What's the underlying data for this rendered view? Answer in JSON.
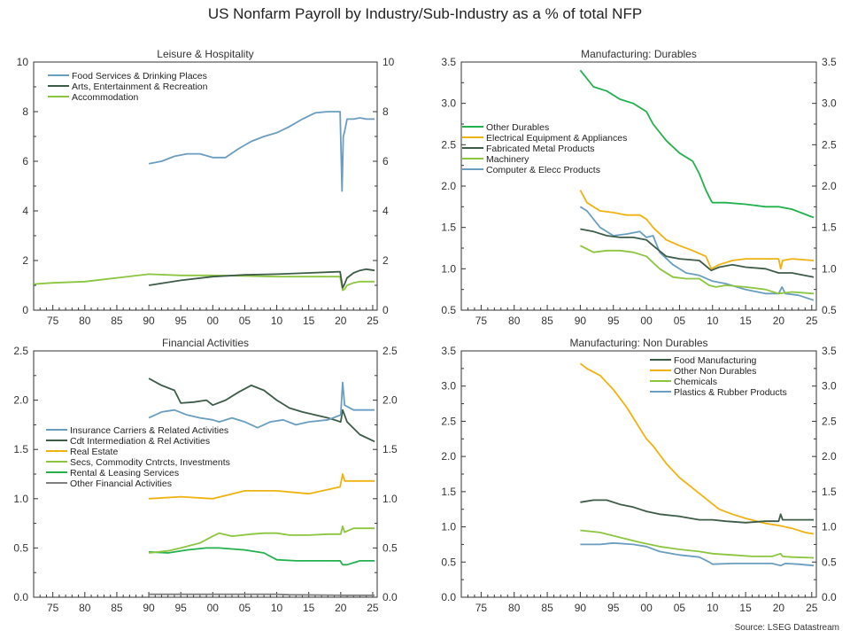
{
  "title": "US Nonfarm Payroll by Industry/Sub-Industry as a % of total NFP",
  "source": "Source: LSEG Datastream",
  "colors": {
    "steel_blue": "#6a9ec0",
    "dark_green": "#3c5c48",
    "light_green": "#8cc63f",
    "bright_green": "#22b14c",
    "gold": "#f0b20f",
    "gray": "#7f7f7f"
  },
  "chart_data": [
    {
      "type": "line",
      "title": "Leisure & Hospitality",
      "x_ticks": [
        "75",
        "80",
        "85",
        "90",
        "95",
        "00",
        "05",
        "10",
        "15",
        "20",
        "25"
      ],
      "ylim": [
        0,
        10
      ],
      "y_ticks": [
        "0",
        "2",
        "4",
        "6",
        "8",
        "10"
      ],
      "legend_position": "top-left",
      "series": [
        {
          "name": "Food Services & Drinking Places",
          "color": "#6a9ec0",
          "x": [
            1990,
            1992,
            1994,
            1996,
            1998,
            2000,
            2002,
            2004,
            2006,
            2008,
            2010,
            2012,
            2014,
            2016,
            2018,
            2019.9,
            2020.2,
            2020.4,
            2020.6,
            2021,
            2022,
            2023,
            2024,
            2025.3
          ],
          "y": [
            5.9,
            6.0,
            6.2,
            6.3,
            6.3,
            6.15,
            6.15,
            6.5,
            6.8,
            7.0,
            7.15,
            7.4,
            7.7,
            7.95,
            8.0,
            8.0,
            4.8,
            7.0,
            7.2,
            7.7,
            7.7,
            7.75,
            7.7,
            7.7
          ]
        },
        {
          "name": "Arts, Entertainment & Recreation",
          "color": "#3c5c48",
          "x": [
            1990,
            1995,
            2000,
            2005,
            2010,
            2015,
            2019.9,
            2020.3,
            2020.6,
            2021,
            2022,
            2023,
            2024,
            2025.3
          ],
          "y": [
            1.0,
            1.2,
            1.35,
            1.42,
            1.45,
            1.5,
            1.55,
            0.9,
            1.05,
            1.3,
            1.5,
            1.6,
            1.65,
            1.6
          ]
        },
        {
          "name": "Accommodation",
          "color": "#8cc63f",
          "x": [
            1972,
            1975,
            1980,
            1985,
            1990,
            1995,
            2000,
            2005,
            2010,
            2015,
            2019.9,
            2020.3,
            2020.6,
            2021,
            2022,
            2023,
            2025.3
          ],
          "y": [
            1.05,
            1.1,
            1.15,
            1.3,
            1.45,
            1.4,
            1.4,
            1.38,
            1.35,
            1.35,
            1.35,
            0.8,
            0.85,
            1.0,
            1.1,
            1.15,
            1.15
          ]
        }
      ]
    },
    {
      "type": "line",
      "title": "Manufacturing: Durables",
      "x_ticks": [
        "75",
        "80",
        "85",
        "90",
        "95",
        "00",
        "05",
        "10",
        "15",
        "20",
        "25"
      ],
      "ylim": [
        0.5,
        3.5
      ],
      "y_ticks": [
        "0.5",
        "1.0",
        "1.5",
        "2.0",
        "2.5",
        "3.0",
        "3.5"
      ],
      "legend_position": "left",
      "series": [
        {
          "name": "Other Durables",
          "color": "#22b14c",
          "x": [
            1990,
            1992,
            1994,
            1996,
            1998,
            2000,
            2001,
            2003,
            2005,
            2007,
            2008,
            2009,
            2009.8,
            2010,
            2012,
            2015,
            2018,
            2020,
            2022,
            2025.3
          ],
          "y": [
            3.4,
            3.2,
            3.15,
            3.05,
            3.0,
            2.9,
            2.75,
            2.55,
            2.4,
            2.3,
            2.15,
            1.95,
            1.82,
            1.8,
            1.8,
            1.78,
            1.75,
            1.75,
            1.72,
            1.62
          ]
        },
        {
          "name": "Electrical Equipment & Appliances",
          "color": "#f0b20f",
          "x": [
            1990,
            1991,
            1993,
            1995,
            1997,
            1999,
            2000,
            2001,
            2003,
            2005,
            2007,
            2009,
            2009.8,
            2011,
            2013,
            2015,
            2018,
            2020,
            2020.3,
            2020.6,
            2022,
            2025.3
          ],
          "y": [
            1.95,
            1.8,
            1.7,
            1.68,
            1.65,
            1.65,
            1.6,
            1.5,
            1.35,
            1.28,
            1.22,
            1.15,
            1.0,
            1.05,
            1.1,
            1.12,
            1.12,
            1.12,
            1.0,
            1.1,
            1.12,
            1.1
          ]
        },
        {
          "name": "Fabricated Metal Products",
          "color": "#3c5c48",
          "x": [
            1990,
            1992,
            1994,
            1996,
            1998,
            2000,
            2001,
            2003,
            2005,
            2008,
            2009.8,
            2011,
            2013,
            2015,
            2018,
            2020,
            2022,
            2025.3
          ],
          "y": [
            1.48,
            1.45,
            1.4,
            1.38,
            1.38,
            1.35,
            1.28,
            1.15,
            1.12,
            1.1,
            0.98,
            1.02,
            1.05,
            1.02,
            1.0,
            0.95,
            0.95,
            0.9
          ]
        },
        {
          "name": "Machinery",
          "color": "#8cc63f",
          "x": [
            1990,
            1992,
            1994,
            1996,
            1998,
            2000,
            2002,
            2004,
            2006,
            2008,
            2009.5,
            2010.5,
            2012,
            2015,
            2018,
            2020,
            2022,
            2025.3
          ],
          "y": [
            1.28,
            1.2,
            1.22,
            1.22,
            1.2,
            1.15,
            1.0,
            0.9,
            0.88,
            0.88,
            0.8,
            0.78,
            0.8,
            0.78,
            0.75,
            0.7,
            0.72,
            0.7
          ]
        },
        {
          "name": "Computer & Elecc Products",
          "color": "#6a9ec0",
          "x": [
            1990,
            1991,
            1993,
            1995,
            1997,
            1999,
            2000,
            2001,
            2002,
            2004,
            2006,
            2008,
            2010,
            2012,
            2015,
            2018,
            2020,
            2020.5,
            2021,
            2023,
            2025.3
          ],
          "y": [
            1.75,
            1.7,
            1.5,
            1.4,
            1.42,
            1.45,
            1.38,
            1.4,
            1.2,
            1.05,
            0.95,
            0.92,
            0.85,
            0.82,
            0.75,
            0.7,
            0.7,
            0.78,
            0.7,
            0.68,
            0.62
          ]
        }
      ]
    },
    {
      "type": "line",
      "title": "Financial Activities",
      "x_ticks": [
        "75",
        "80",
        "85",
        "90",
        "95",
        "00",
        "05",
        "10",
        "15",
        "20",
        "25"
      ],
      "ylim": [
        0.0,
        2.5
      ],
      "y_ticks": [
        "0.0",
        "0.5",
        "1.0",
        "1.5",
        "2.0",
        "2.5"
      ],
      "legend_position": "left",
      "series": [
        {
          "name": "Insurance Carriers & Related Activities",
          "color": "#6a9ec0",
          "x": [
            1990,
            1992,
            1994,
            1996,
            1998,
            2000,
            2001,
            2003,
            2005,
            2007,
            2009,
            2011,
            2013,
            2015,
            2018,
            2020,
            2020.3,
            2020.6,
            2022,
            2025.3
          ],
          "y": [
            1.82,
            1.88,
            1.9,
            1.85,
            1.82,
            1.8,
            1.78,
            1.82,
            1.78,
            1.72,
            1.78,
            1.8,
            1.75,
            1.78,
            1.8,
            1.85,
            2.18,
            1.95,
            1.9,
            1.9
          ]
        },
        {
          "name": "Cdt Intermediation & Rel Activities",
          "color": "#3c5c48",
          "x": [
            1990,
            1992,
            1994,
            1995,
            1997,
            1999,
            2000,
            2002,
            2004,
            2006,
            2008,
            2010,
            2012,
            2014,
            2016,
            2018,
            2020,
            2020.3,
            2021,
            2023,
            2025.3
          ],
          "y": [
            2.22,
            2.15,
            2.1,
            1.97,
            1.98,
            2.0,
            1.95,
            2.0,
            2.08,
            2.15,
            2.1,
            2.0,
            1.92,
            1.88,
            1.85,
            1.82,
            1.78,
            1.9,
            1.78,
            1.65,
            1.58
          ]
        },
        {
          "name": "Real Estate",
          "color": "#f0b20f",
          "x": [
            1990,
            1995,
            2000,
            2005,
            2010,
            2015,
            2019.9,
            2020.3,
            2020.6,
            2022,
            2025.3
          ],
          "y": [
            1.0,
            1.02,
            1.0,
            1.08,
            1.08,
            1.05,
            1.12,
            1.25,
            1.18,
            1.18,
            1.18
          ]
        },
        {
          "name": "Secs, Commodity Cntrcts, Investments",
          "color": "#8cc63f",
          "x": [
            1990,
            1993,
            1995,
            1998,
            2000,
            2001,
            2003,
            2006,
            2008,
            2010,
            2012,
            2015,
            2018,
            2020,
            2020.3,
            2020.6,
            2022,
            2025.3
          ],
          "y": [
            0.45,
            0.47,
            0.5,
            0.55,
            0.62,
            0.65,
            0.62,
            0.64,
            0.65,
            0.65,
            0.63,
            0.63,
            0.64,
            0.64,
            0.72,
            0.66,
            0.7,
            0.7
          ]
        },
        {
          "name": "Rental & Leasing Services",
          "color": "#22b14c",
          "x": [
            1990,
            1993,
            1996,
            1999,
            2001,
            2005,
            2008,
            2010,
            2013,
            2016,
            2019.9,
            2020.3,
            2021,
            2023,
            2025.3
          ],
          "y": [
            0.46,
            0.45,
            0.48,
            0.5,
            0.5,
            0.48,
            0.45,
            0.38,
            0.37,
            0.37,
            0.37,
            0.33,
            0.33,
            0.37,
            0.37
          ]
        },
        {
          "name": "Other Financial Activities",
          "color": "#7f7f7f",
          "x": [
            1990,
            2000,
            2010,
            2012,
            2020,
            2025.3
          ],
          "y": [
            0.03,
            0.03,
            0.03,
            0.025,
            0.02,
            0.02
          ]
        }
      ]
    },
    {
      "type": "line",
      "title": "Manufacturing: Non Durables",
      "x_ticks": [
        "75",
        "80",
        "85",
        "90",
        "95",
        "00",
        "05",
        "10",
        "15",
        "20",
        "25"
      ],
      "ylim": [
        0.0,
        3.5
      ],
      "y_ticks": [
        "0.0",
        "0.5",
        "1.0",
        "1.5",
        "2.0",
        "2.5",
        "3.0",
        "3.5"
      ],
      "legend_position": "top-right",
      "series": [
        {
          "name": "Food Manufacturing",
          "color": "#3c5c48",
          "x": [
            1990,
            1992,
            1994,
            1996,
            1998,
            2000,
            2002,
            2005,
            2008,
            2010,
            2012,
            2015,
            2018,
            2020,
            2020.3,
            2020.6,
            2022,
            2025.3
          ],
          "y": [
            1.35,
            1.38,
            1.38,
            1.32,
            1.28,
            1.22,
            1.18,
            1.15,
            1.1,
            1.1,
            1.08,
            1.06,
            1.08,
            1.08,
            1.18,
            1.1,
            1.1,
            1.1
          ]
        },
        {
          "name": "Other Non Durables",
          "color": "#f0b20f",
          "x": [
            1990,
            1991,
            1993,
            1995,
            1997,
            1999,
            2000,
            2001,
            2003,
            2005,
            2007,
            2009,
            2011,
            2013,
            2015,
            2018,
            2020,
            2022,
            2024,
            2025.3
          ],
          "y": [
            3.32,
            3.25,
            3.15,
            2.95,
            2.7,
            2.4,
            2.25,
            2.15,
            1.9,
            1.7,
            1.55,
            1.4,
            1.25,
            1.18,
            1.12,
            1.05,
            1.02,
            0.98,
            0.92,
            0.9
          ]
        },
        {
          "name": "Chemicals",
          "color": "#8cc63f",
          "x": [
            1990,
            1993,
            1996,
            1999,
            2002,
            2005,
            2008,
            2010,
            2013,
            2016,
            2019,
            2020.3,
            2020.6,
            2022,
            2025.3
          ],
          "y": [
            0.95,
            0.92,
            0.85,
            0.78,
            0.72,
            0.68,
            0.65,
            0.62,
            0.6,
            0.58,
            0.58,
            0.62,
            0.58,
            0.57,
            0.56
          ]
        },
        {
          "name": "Plastics & Rubber Products",
          "color": "#6a9ec0",
          "x": [
            1990,
            1993,
            1995,
            1998,
            2000,
            2002,
            2005,
            2008,
            2009.5,
            2010,
            2013,
            2016,
            2019,
            2020.3,
            2021,
            2023,
            2025.3
          ],
          "y": [
            0.75,
            0.75,
            0.77,
            0.75,
            0.72,
            0.65,
            0.6,
            0.57,
            0.5,
            0.47,
            0.48,
            0.48,
            0.48,
            0.45,
            0.48,
            0.47,
            0.45
          ]
        }
      ]
    }
  ]
}
